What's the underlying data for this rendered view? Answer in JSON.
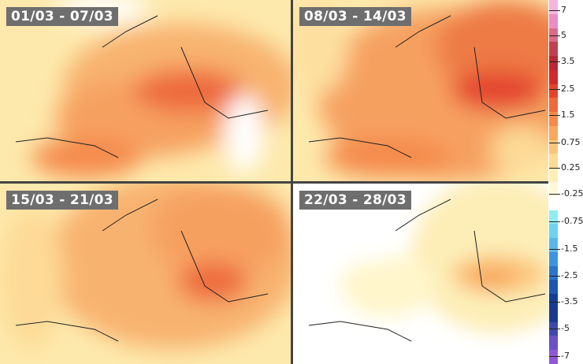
{
  "panels": [
    {
      "title": "01/03 - 07/03"
    },
    {
      "title": "08/03 - 14/03"
    },
    {
      "title": "15/03 - 21/03"
    },
    {
      "title": "22/03 - 28/03"
    }
  ],
  "legend": {
    "labels": [
      "7",
      "5",
      "3.5",
      "2.5",
      "1.5",
      "0.75",
      "0.25",
      "-0.25",
      "-0.75",
      "-1.5",
      "-2.5",
      "-3.5",
      "-5",
      "-7"
    ],
    "colors": [
      "#f4b4e0",
      "#ec8cc4",
      "#d86a8a",
      "#c04050",
      "#b82838",
      "#d02a2e",
      "#e4442e",
      "#ee6a3c",
      "#f48a4c",
      "#f8a85e",
      "#fbc47c",
      "#fdda96",
      "#fdeeb8",
      "#fff8d8",
      "#ffffff",
      "#8eeef4",
      "#6cd4f2",
      "#58b8ec",
      "#3c94e0",
      "#2a74cc",
      "#1c58b0",
      "#143e94",
      "#1c3a8c",
      "#3e48a8",
      "#6a52c4",
      "#9058d8"
    ]
  }
}
